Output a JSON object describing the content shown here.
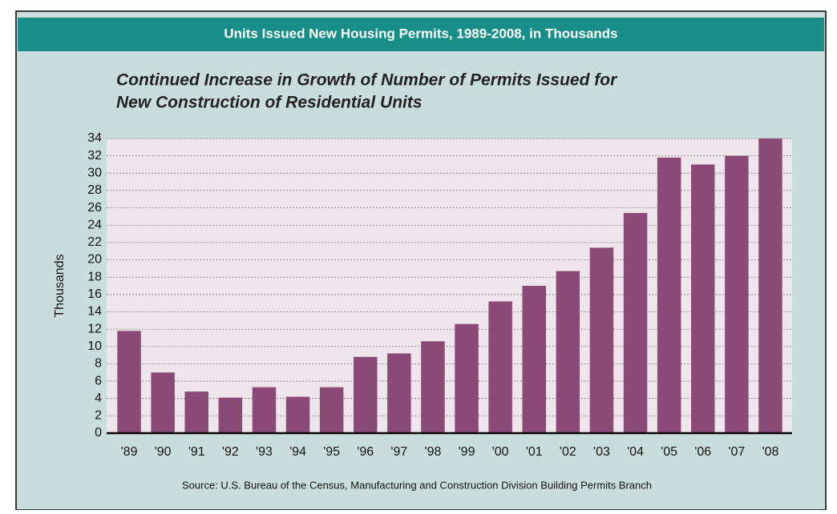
{
  "chart_data": {
    "type": "bar",
    "title": "Units Issued New Housing Permits, 1989-2008, in Thousands",
    "subtitle": [
      "Continued Increase in Growth of Number of Permits Issued for",
      "New Construction of Residential Units"
    ],
    "y_label": "Thousands",
    "source": "Source: U.S. Bureau of the Census, Manufacturing and Construction Division Building Permits Branch",
    "categories": [
      "'89",
      "'90",
      "'91",
      "'92",
      "'93",
      "'94",
      "'95",
      "'96",
      "'97",
      "'98",
      "'99",
      "'00",
      "'01",
      "'02",
      "'03",
      "'04",
      "'05",
      "'06",
      "'07",
      "'08"
    ],
    "values": [
      11.8,
      7,
      4.8,
      4.1,
      5.3,
      4.2,
      5.3,
      8.8,
      9.2,
      10.6,
      12.6,
      15.2,
      17,
      18.7,
      21.4,
      25.4,
      31.8,
      31,
      32,
      34
    ],
    "color": "#8b4a75",
    "ylim": [
      0,
      34
    ],
    "yticks": [
      0,
      2,
      4,
      6,
      8,
      10,
      12,
      14,
      16,
      18,
      20,
      22,
      24,
      26,
      28,
      30,
      32,
      34
    ],
    "grid": true
  }
}
